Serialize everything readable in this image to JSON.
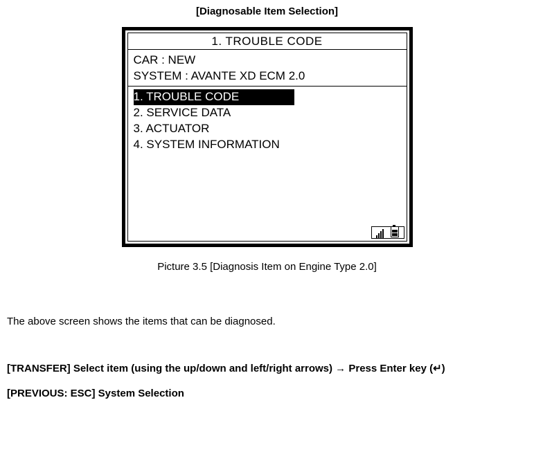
{
  "title": "[Diagnosable Item Selection]",
  "screen": {
    "header": "1. TROUBLE CODE",
    "info": {
      "line1": "CAR    : NEW",
      "line2": "SYSTEM : AVANTE XD ECM 2.0"
    },
    "menu": [
      {
        "label": "1. TROUBLE CODE",
        "selected": true
      },
      {
        "label": "2. SERVICE DATA",
        "selected": false
      },
      {
        "label": "3. ACTUATOR",
        "selected": false
      },
      {
        "label": "4. SYSTEM INFORMATION",
        "selected": false
      }
    ]
  },
  "caption": "Picture 3.5 [Diagnosis Item on Engine Type 2.0]",
  "body": "The above screen shows the items that can be diagnosed.",
  "instructions": {
    "line1": "[TRANSFER] Select item (using the up/down and left/right arrows) → Press Enter key (↵)",
    "line2": "[PREVIOUS: ESC] System Selection"
  }
}
